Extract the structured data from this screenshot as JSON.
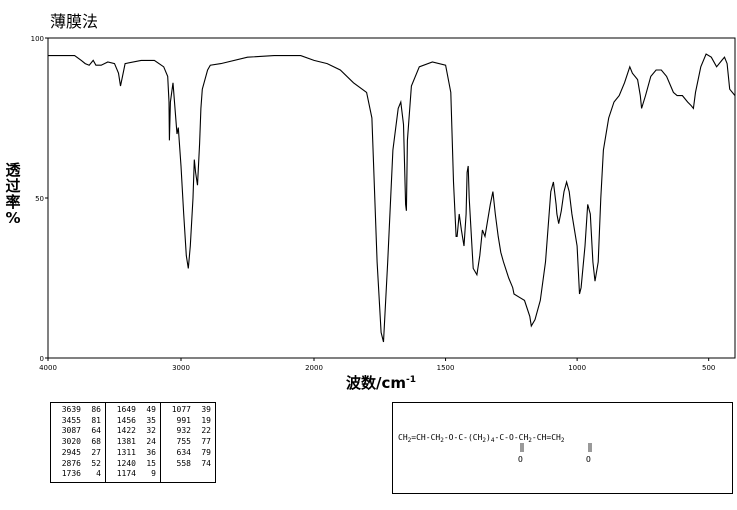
{
  "header": {
    "method": "薄膜法"
  },
  "chart_data": {
    "type": "line",
    "xlabel": "波数/cm",
    "xlabel_sup": "-1",
    "ylabel": "透过率%",
    "xlim": [
      4000,
      400
    ],
    "ylim": [
      0,
      100
    ],
    "x_ticks": [
      4000,
      3000,
      2000,
      1500,
      1000,
      500
    ],
    "y_ticks": [
      0,
      50,
      100
    ],
    "series": [
      {
        "values": [
          [
            4000,
            94.5
          ],
          [
            3900,
            94.5
          ],
          [
            3800,
            94.5
          ],
          [
            3750,
            93
          ],
          [
            3720,
            92
          ],
          [
            3690,
            91.5
          ],
          [
            3660,
            93
          ],
          [
            3640,
            91.5
          ],
          [
            3600,
            91.5
          ],
          [
            3550,
            92.5
          ],
          [
            3500,
            92
          ],
          [
            3470,
            89
          ],
          [
            3455,
            85
          ],
          [
            3440,
            88
          ],
          [
            3420,
            92
          ],
          [
            3300,
            93
          ],
          [
            3200,
            93
          ],
          [
            3130,
            91
          ],
          [
            3100,
            88
          ],
          [
            3090,
            80
          ],
          [
            3087,
            68
          ],
          [
            3080,
            80
          ],
          [
            3060,
            86
          ],
          [
            3045,
            78
          ],
          [
            3030,
            70
          ],
          [
            3020,
            72
          ],
          [
            3000,
            60
          ],
          [
            2980,
            45
          ],
          [
            2960,
            32
          ],
          [
            2945,
            28
          ],
          [
            2930,
            35
          ],
          [
            2910,
            50
          ],
          [
            2900,
            62
          ],
          [
            2890,
            58
          ],
          [
            2876,
            54
          ],
          [
            2860,
            67
          ],
          [
            2850,
            78
          ],
          [
            2840,
            84
          ],
          [
            2800,
            90
          ],
          [
            2780,
            91.5
          ],
          [
            2700,
            92
          ],
          [
            2500,
            94
          ],
          [
            2300,
            94.5
          ],
          [
            2100,
            94.5
          ],
          [
            2000,
            93
          ],
          [
            1950,
            92
          ],
          [
            1900,
            90
          ],
          [
            1850,
            86
          ],
          [
            1800,
            83
          ],
          [
            1780,
            75
          ],
          [
            1760,
            30
          ],
          [
            1745,
            8
          ],
          [
            1736,
            5
          ],
          [
            1720,
            30
          ],
          [
            1700,
            65
          ],
          [
            1680,
            78
          ],
          [
            1670,
            80
          ],
          [
            1660,
            73
          ],
          [
            1652,
            48
          ],
          [
            1649,
            46
          ],
          [
            1645,
            68
          ],
          [
            1630,
            85
          ],
          [
            1600,
            91
          ],
          [
            1550,
            92.5
          ],
          [
            1500,
            91.5
          ],
          [
            1480,
            83
          ],
          [
            1470,
            55
          ],
          [
            1460,
            38
          ],
          [
            1456,
            38
          ],
          [
            1448,
            45
          ],
          [
            1440,
            40
          ],
          [
            1430,
            35
          ],
          [
            1422,
            45
          ],
          [
            1418,
            58
          ],
          [
            1414,
            60
          ],
          [
            1410,
            50
          ],
          [
            1395,
            28
          ],
          [
            1381,
            26
          ],
          [
            1370,
            32
          ],
          [
            1360,
            40
          ],
          [
            1350,
            38
          ],
          [
            1330,
            48
          ],
          [
            1320,
            52
          ],
          [
            1311,
            45
          ],
          [
            1300,
            38
          ],
          [
            1290,
            33
          ],
          [
            1280,
            30
          ],
          [
            1260,
            25
          ],
          [
            1245,
            22
          ],
          [
            1240,
            20
          ],
          [
            1220,
            19
          ],
          [
            1200,
            18
          ],
          [
            1180,
            13
          ],
          [
            1174,
            10
          ],
          [
            1160,
            12
          ],
          [
            1140,
            18
          ],
          [
            1120,
            30
          ],
          [
            1100,
            52
          ],
          [
            1090,
            55
          ],
          [
            1080,
            48
          ],
          [
            1077,
            45
          ],
          [
            1070,
            42
          ],
          [
            1060,
            46
          ],
          [
            1050,
            52
          ],
          [
            1040,
            55
          ],
          [
            1030,
            52
          ],
          [
            1020,
            45
          ],
          [
            1000,
            35
          ],
          [
            991,
            20
          ],
          [
            985,
            22
          ],
          [
            970,
            35
          ],
          [
            960,
            48
          ],
          [
            950,
            45
          ],
          [
            940,
            30
          ],
          [
            932,
            24
          ],
          [
            920,
            30
          ],
          [
            910,
            50
          ],
          [
            900,
            65
          ],
          [
            880,
            75
          ],
          [
            860,
            80
          ],
          [
            840,
            82
          ],
          [
            820,
            86
          ],
          [
            800,
            91
          ],
          [
            790,
            89
          ],
          [
            770,
            87
          ],
          [
            760,
            82
          ],
          [
            755,
            78
          ],
          [
            740,
            82
          ],
          [
            720,
            88
          ],
          [
            700,
            90
          ],
          [
            680,
            90
          ],
          [
            660,
            88
          ],
          [
            634,
            83
          ],
          [
            620,
            82
          ],
          [
            600,
            82
          ],
          [
            580,
            80
          ],
          [
            568,
            79
          ],
          [
            558,
            78
          ],
          [
            550,
            83
          ],
          [
            530,
            91
          ],
          [
            510,
            95
          ],
          [
            490,
            94
          ],
          [
            470,
            91
          ],
          [
            450,
            93
          ],
          [
            440,
            94
          ],
          [
            430,
            92
          ],
          [
            420,
            84
          ],
          [
            400,
            82
          ]
        ]
      }
    ],
    "peak_table": [
      [
        [
          "3639",
          "86"
        ],
        [
          "3455",
          "81"
        ],
        [
          "3087",
          "64"
        ],
        [
          "3020",
          "68"
        ],
        [
          "2945",
          "27"
        ],
        [
          "2876",
          "52"
        ],
        [
          "1736",
          "4"
        ]
      ],
      [
        [
          "1649",
          "49"
        ],
        [
          "1456",
          "35"
        ],
        [
          "1422",
          "32"
        ],
        [
          "1381",
          "24"
        ],
        [
          "1311",
          "36"
        ],
        [
          "1240",
          "15"
        ],
        [
          "1174",
          "9"
        ]
      ],
      [
        [
          "1077",
          "39"
        ],
        [
          "991",
          "19"
        ],
        [
          "932",
          "22"
        ],
        [
          "755",
          "77"
        ],
        [
          "634",
          "79"
        ],
        [
          "558",
          "74"
        ]
      ]
    ],
    "structure": {
      "main_line": [
        "CH",
        "=",
        "CH",
        "-",
        "CH",
        "-",
        "O",
        "-",
        "C",
        "-",
        "(CH",
        ")",
        "-",
        "C",
        "-",
        "O",
        "-",
        "CH",
        "-",
        "CH",
        "=",
        "CH"
      ],
      "subscripts": [
        "2",
        "2",
        "2",
        "4",
        "2",
        "2"
      ],
      "carbonyl_o": [
        "O",
        "O"
      ]
    }
  }
}
